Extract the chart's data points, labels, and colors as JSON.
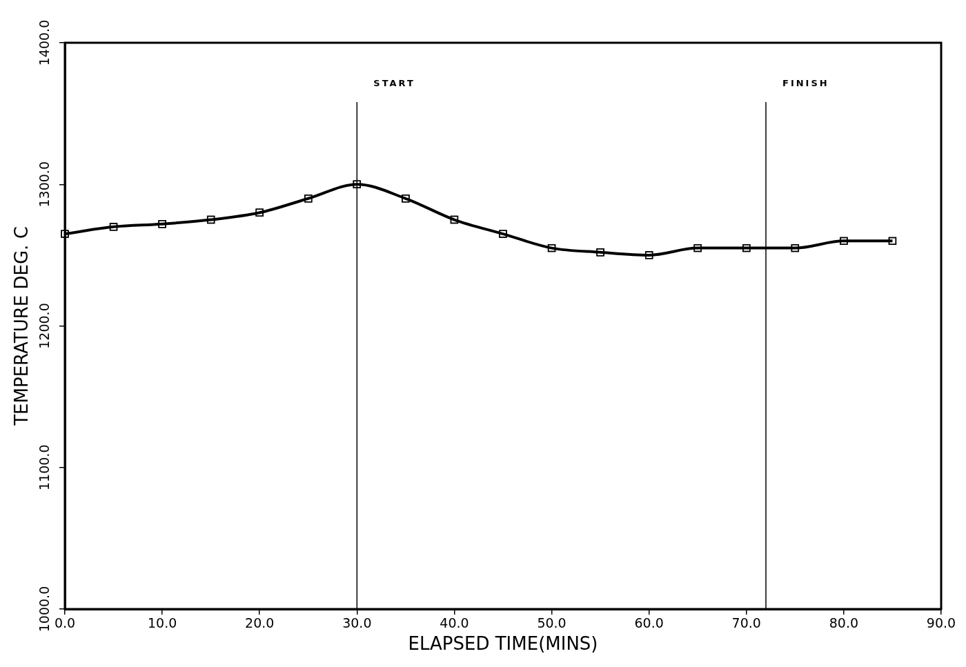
{
  "chart_data": {
    "type": "line",
    "xlabel": "ELAPSED TIME(MINS)",
    "ylabel": "TEMPERATURE DEG. C",
    "x": [
      0,
      5,
      10,
      15,
      20,
      25,
      30,
      35,
      40,
      45,
      50,
      55,
      60,
      65,
      70,
      75,
      80,
      85
    ],
    "series": [
      {
        "color": "#000000",
        "values": [
          1265,
          1270,
          1272,
          1275,
          1280,
          1290,
          1300,
          1290,
          1275,
          1265,
          1255,
          1252,
          1250,
          1255,
          1255,
          1255,
          1260,
          1260
        ]
      }
    ],
    "xlim": [
      0,
      90
    ],
    "xticks": [
      {
        "value": 0,
        "label": "0.0"
      },
      {
        "value": 10,
        "label": "10.0"
      },
      {
        "value": 20,
        "label": "20.0"
      },
      {
        "value": 30,
        "label": "30.0"
      },
      {
        "value": 40,
        "label": "40.0"
      },
      {
        "value": 50,
        "label": "50.0"
      },
      {
        "value": 60,
        "label": "60.0"
      },
      {
        "value": 70,
        "label": "70.0"
      },
      {
        "value": 80,
        "label": "80.0"
      },
      {
        "value": 90,
        "label": "90.0"
      }
    ],
    "ylim": [
      1000,
      1400
    ],
    "yticks": [
      {
        "value": 1000,
        "label": "1000.0"
      },
      {
        "value": 1100,
        "label": "1100.0"
      },
      {
        "value": 1200,
        "label": "1200.0"
      },
      {
        "value": 1300,
        "label": "1300.0"
      },
      {
        "value": 1400,
        "label": "1400.0"
      }
    ],
    "ref_lines": [
      {
        "axis": "x",
        "value": 30,
        "label": "START",
        "color": "#000000"
      },
      {
        "axis": "x",
        "value": 72,
        "label": "FINISH",
        "color": "#000000"
      }
    ],
    "grid": false,
    "legend": false,
    "marker": "square",
    "line_style": "solid"
  }
}
